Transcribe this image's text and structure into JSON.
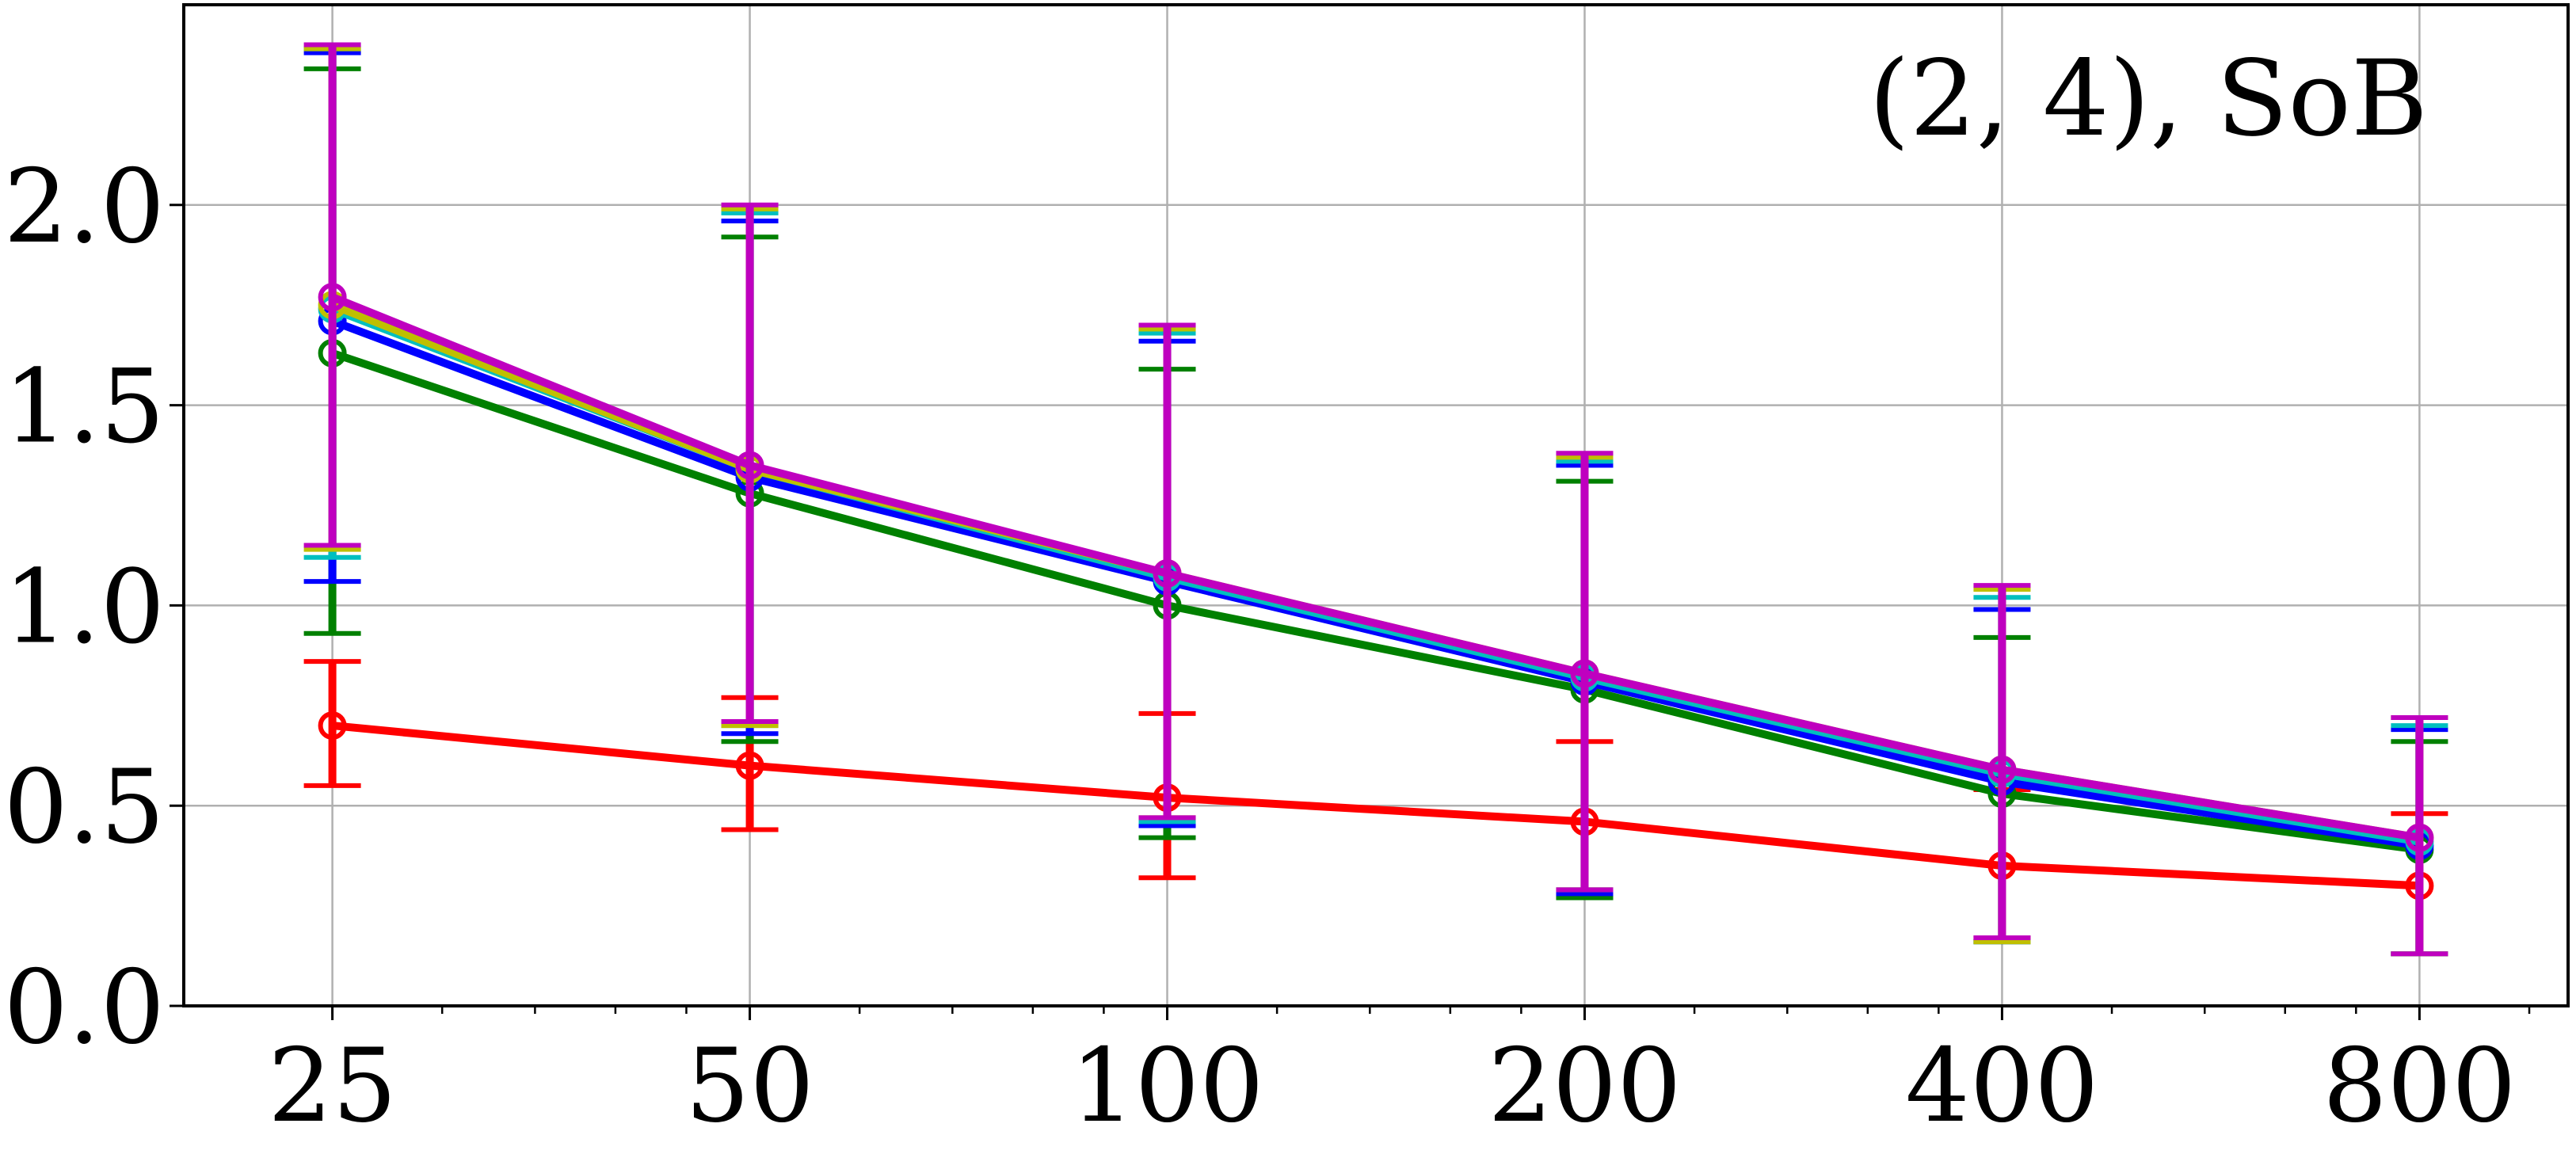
{
  "chart_data": {
    "type": "line",
    "title": "",
    "annotation": "(2, 4), SoB",
    "xlabel": "",
    "ylabel": "",
    "x_scale": "log2",
    "x": [
      25,
      50,
      100,
      200,
      400,
      800
    ],
    "x_tick_labels": [
      "25",
      "50",
      "100",
      "200",
      "400",
      "800"
    ],
    "y_ticks": [
      0.0,
      0.5,
      1.0,
      1.5,
      2.0
    ],
    "y_tick_labels": [
      "0.0",
      "0.5",
      "1.0",
      "1.5",
      "2.0"
    ],
    "ylim": [
      0.0,
      2.5
    ],
    "grid": true,
    "error_bars": true,
    "marker": "open-circle",
    "series": [
      {
        "color": "#ff0000",
        "values": [
          0.7,
          0.6,
          0.52,
          0.46,
          0.35,
          0.3
        ],
        "err_low": [
          0.55,
          0.44,
          0.32,
          0.27,
          0.17,
          0.13
        ],
        "err_high": [
          0.86,
          0.77,
          0.73,
          0.66,
          0.54,
          0.48
        ]
      },
      {
        "color": "#008000",
        "values": [
          1.63,
          1.28,
          1.0,
          0.79,
          0.53,
          0.39
        ],
        "err_low": [
          0.93,
          0.66,
          0.42,
          0.27,
          0.16,
          0.13
        ],
        "err_high": [
          2.34,
          1.92,
          1.59,
          1.31,
          0.92,
          0.66
        ]
      },
      {
        "color": "#0000ff",
        "values": [
          1.71,
          1.32,
          1.06,
          0.81,
          0.56,
          0.4
        ],
        "err_low": [
          1.06,
          0.68,
          0.45,
          0.28,
          0.16,
          0.13
        ],
        "err_high": [
          2.38,
          1.96,
          1.66,
          1.35,
          0.99,
          0.69
        ]
      },
      {
        "color": "#00bfbf",
        "values": [
          1.74,
          1.34,
          1.07,
          0.82,
          0.58,
          0.41
        ],
        "err_low": [
          1.12,
          0.7,
          0.46,
          0.29,
          0.16,
          0.13
        ],
        "err_high": [
          2.39,
          1.98,
          1.68,
          1.36,
          1.02,
          0.7
        ]
      },
      {
        "color": "#bfbf00",
        "values": [
          1.75,
          1.34,
          1.08,
          0.83,
          0.59,
          0.42
        ],
        "err_low": [
          1.14,
          0.7,
          0.47,
          0.29,
          0.16,
          0.13
        ],
        "err_high": [
          2.39,
          1.99,
          1.69,
          1.37,
          1.04,
          0.72
        ]
      },
      {
        "color": "#bf00bf",
        "values": [
          1.77,
          1.35,
          1.08,
          0.83,
          0.59,
          0.42
        ],
        "err_low": [
          1.15,
          0.71,
          0.47,
          0.29,
          0.17,
          0.13
        ],
        "err_high": [
          2.4,
          2.0,
          1.7,
          1.38,
          1.05,
          0.72
        ]
      }
    ]
  }
}
